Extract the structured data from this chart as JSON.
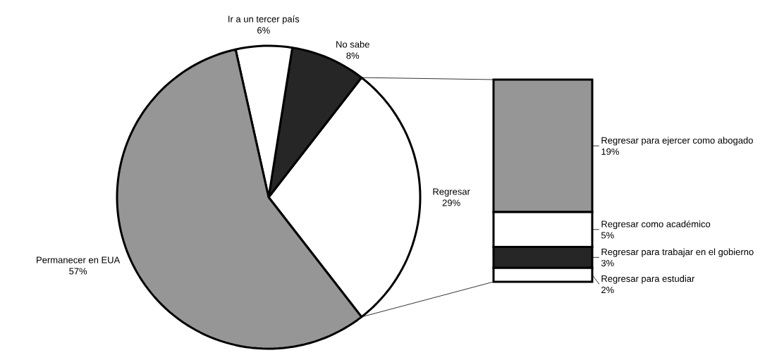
{
  "chart_data": [
    {
      "type": "pie",
      "categories": [
        "Regresar",
        "No sabe",
        "Ir a un tercer país",
        "Permanecer en EUA"
      ],
      "values": [
        29,
        8,
        6,
        57
      ],
      "colors": [
        "#ffffff",
        "#262626",
        "#ffffff",
        "#969696"
      ],
      "value_labels": [
        "29%",
        "8%",
        "6%",
        "57%"
      ],
      "legend": false
    },
    {
      "type": "bar",
      "stacked": true,
      "categories": [
        null
      ],
      "legend": false,
      "series": [
        {
          "name": "Regresar para estudiar",
          "color": "#ffffff",
          "values": [
            2
          ],
          "value_labels": [
            "2%"
          ]
        },
        {
          "name": "Regresar para trabajar en el gobierno",
          "color": "#262626",
          "values": [
            3
          ],
          "value_labels": [
            "3%"
          ]
        },
        {
          "name": "Regresar como académico",
          "color": "#ffffff",
          "values": [
            5
          ],
          "value_labels": [
            "5%"
          ]
        },
        {
          "name": "Regresar para ejercer como abogado",
          "color": "#969696",
          "values": [
            19
          ],
          "value_labels": [
            "19%"
          ]
        }
      ]
    }
  ]
}
